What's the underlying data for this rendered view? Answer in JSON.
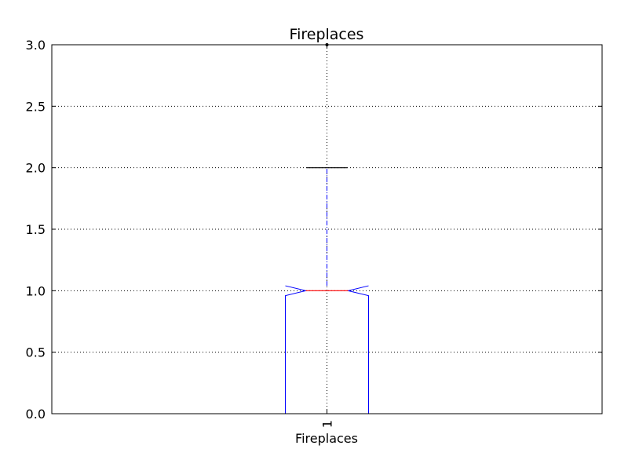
{
  "chart_data": {
    "type": "boxplot",
    "title": "Fireplaces",
    "xlabel": "Fireplaces",
    "ylabel": "",
    "ylim": [
      0.0,
      3.0
    ],
    "yticks": [
      "0.0",
      "0.5",
      "1.0",
      "1.5",
      "2.0",
      "2.5",
      "3.0"
    ],
    "xticks": [
      "1"
    ],
    "grid": true,
    "notched": true,
    "series": [
      {
        "min": 0.0,
        "q1": 0.0,
        "median": 1.0,
        "q3": 1.0,
        "notch_low": 0.96,
        "notch_high": 1.04,
        "whisker_low": 0.0,
        "whisker_high": 2.0,
        "outliers": [
          3.0
        ]
      }
    ],
    "colors": {
      "box": "#0000ff",
      "median": "#ff0000",
      "whisker": "#0000ff",
      "cap": "#000000",
      "grid": "#000000"
    }
  }
}
